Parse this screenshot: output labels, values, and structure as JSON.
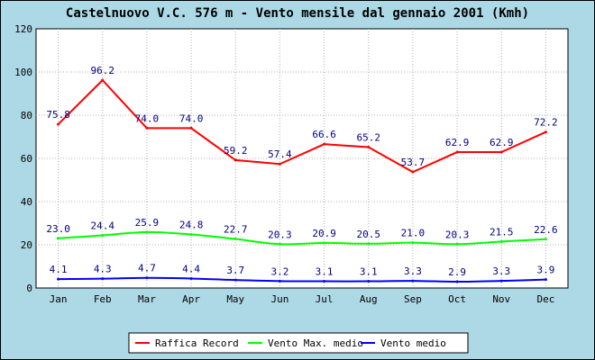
{
  "chart_data": {
    "type": "line",
    "title": "Castelnuovo V.C. 576 m - Vento mensile dal gennaio 2001 (Kmh)",
    "categories": [
      "Jan",
      "Feb",
      "Mar",
      "Apr",
      "May",
      "Jun",
      "Jul",
      "Aug",
      "Sep",
      "Oct",
      "Nov",
      "Dec"
    ],
    "ylim": [
      0,
      120
    ],
    "yticks": [
      0,
      20,
      40,
      60,
      80,
      100,
      120
    ],
    "grid": true,
    "legend_position": "bottom",
    "series": [
      {
        "name": "Raffica Record",
        "color": "#ff0000",
        "smooth": false,
        "values": [
          75.8,
          96.2,
          74.0,
          74.0,
          59.2,
          57.4,
          66.6,
          65.2,
          53.7,
          62.9,
          62.9,
          72.2
        ],
        "labels": [
          "75.8",
          "96.2",
          "74.0",
          "74.0",
          "59.2",
          "57.4",
          "66.6",
          "65.2",
          "53.7",
          "62.9",
          "62.9",
          "72.2"
        ]
      },
      {
        "name": "Vento Max. medio",
        "color": "#00ff00",
        "smooth": true,
        "values": [
          23.0,
          24.4,
          25.9,
          24.8,
          22.7,
          20.3,
          20.9,
          20.5,
          21.0,
          20.3,
          21.5,
          22.6
        ],
        "labels": [
          "23.0",
          "24.4",
          "25.9",
          "24.8",
          "22.7",
          "20.3",
          "20.9",
          "20.5",
          "21.0",
          "20.3",
          "21.5",
          "22.6"
        ]
      },
      {
        "name": "Vento medio",
        "color": "#0000ff",
        "smooth": true,
        "values": [
          4.1,
          4.3,
          4.7,
          4.4,
          3.7,
          3.2,
          3.1,
          3.1,
          3.3,
          2.9,
          3.3,
          3.9
        ],
        "labels": [
          "4.1",
          "4.3",
          "4.7",
          "4.4",
          "3.7",
          "3.2",
          "3.1",
          "3.1",
          "3.3",
          "2.9",
          "3.3",
          "3.9"
        ]
      }
    ]
  }
}
